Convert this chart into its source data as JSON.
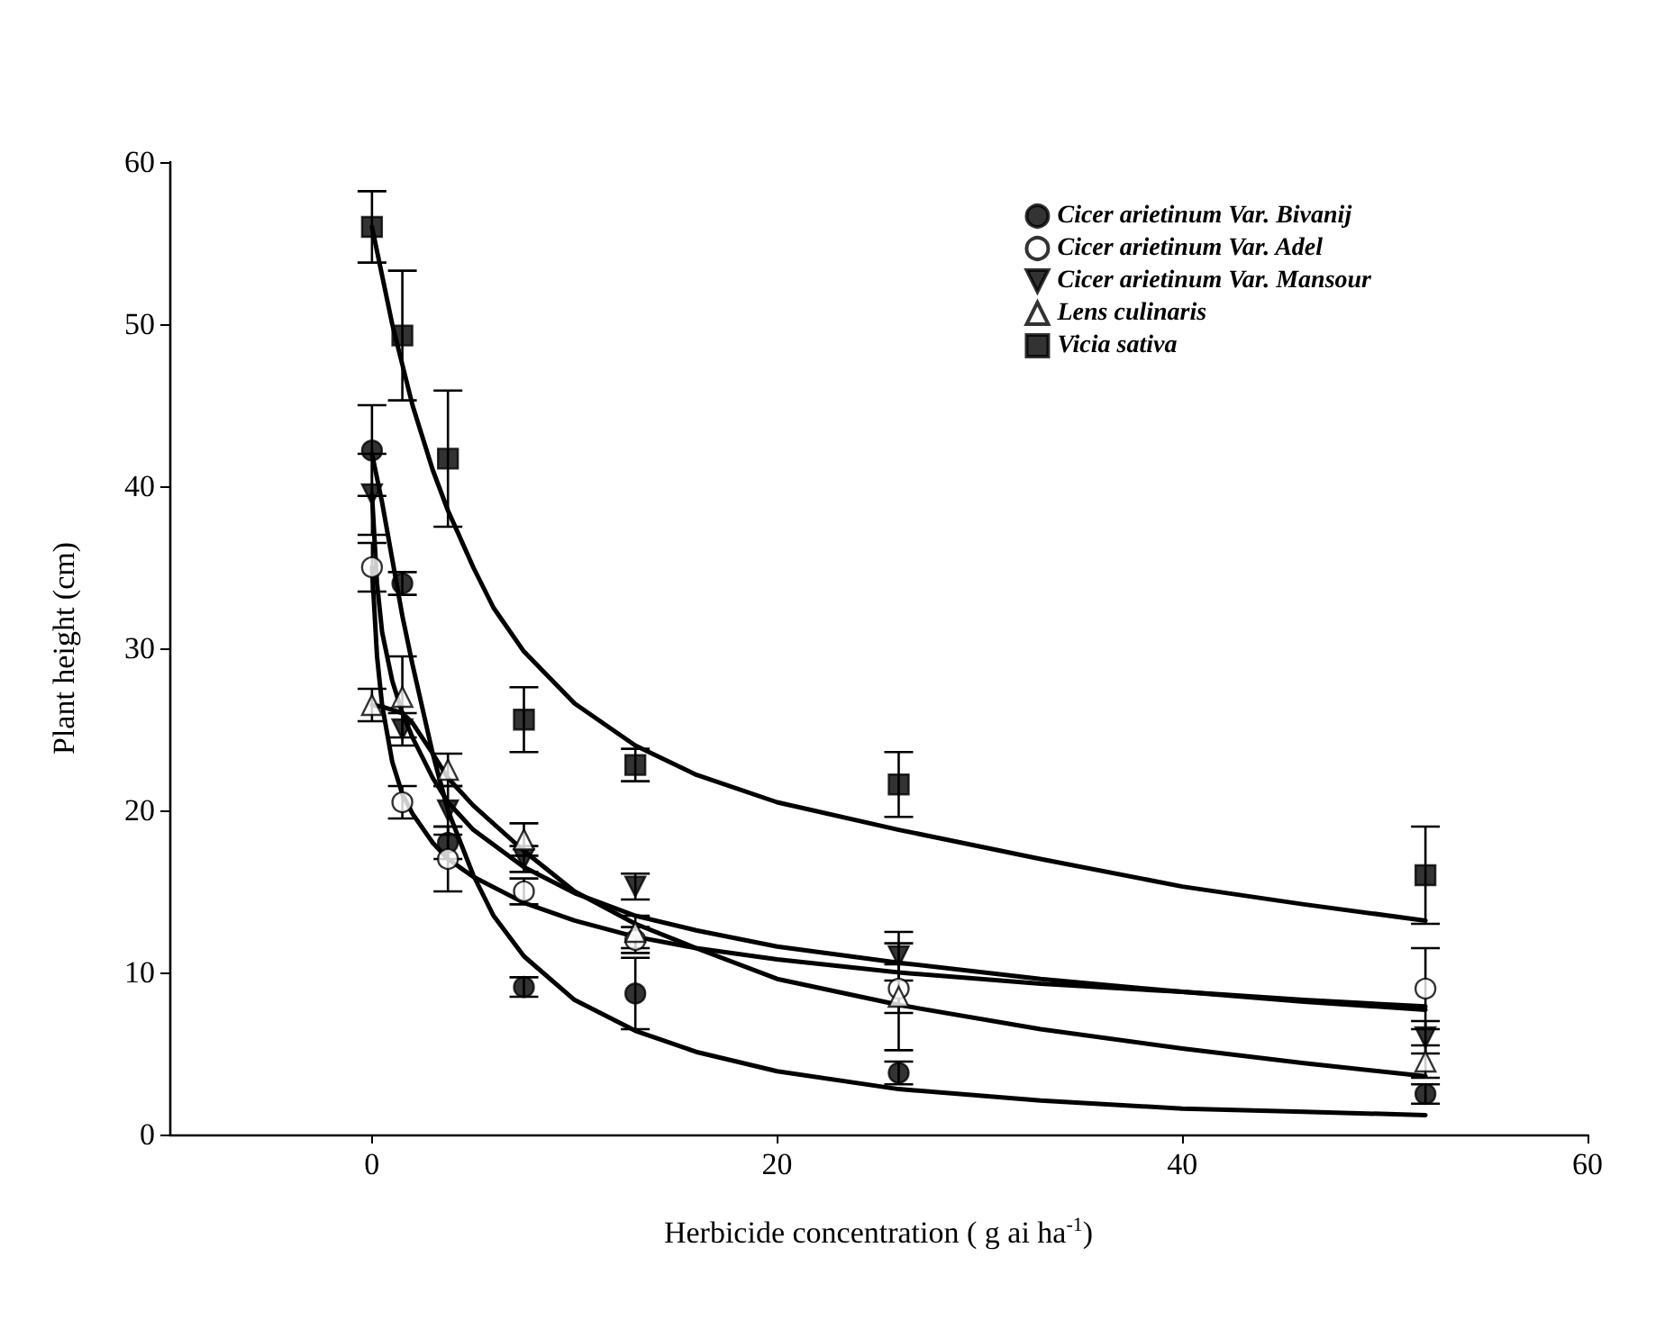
{
  "chart_data": {
    "type": "scatter",
    "xlabel": "Herbicide concentration ( g ai ha$^{-1}$)",
    "ylabel": "Plant height (cm)",
    "x": [
      0,
      1.5,
      3.75,
      7.5,
      13,
      26,
      52
    ],
    "series": [
      {
        "name": "Cicer arietinum Var. Bivanij",
        "color": "#000000",
        "marker": "circle",
        "values": [
          42.2,
          34,
          18,
          9.1,
          8.7,
          3.8,
          2.5
        ],
        "errors": [
          2.8,
          0.7,
          1,
          0.6,
          2.2,
          0.7,
          0.6
        ]
      },
      {
        "name": "Cicer arietinum Var. Adel",
        "color": "#ffffff",
        "marker": "circle",
        "values": [
          35,
          20.5,
          17,
          15,
          12,
          9,
          9
        ],
        "errors": [
          1.5,
          1,
          2,
          0.8,
          0.8,
          1.5,
          2.5
        ]
      },
      {
        "name": "Cicer arietinum Var. Mansour",
        "color": "#000000",
        "marker": "triangle-down",
        "values": [
          39.5,
          25,
          20,
          17,
          15.3,
          11,
          6
        ],
        "errors": [
          2.5,
          1,
          1.5,
          0.8,
          0.8,
          1.5,
          1
        ]
      },
      {
        "name": "Lens culinaris",
        "color": "#ffffff",
        "marker": "triangle",
        "values": [
          26.5,
          27,
          22.5,
          18.2,
          12.5,
          8.5,
          4.5
        ],
        "errors": [
          1,
          2.5,
          1,
          1,
          1,
          3.3,
          1
        ]
      },
      {
        "name": "Vicia sativa",
        "color": "#000000",
        "marker": "square",
        "values": [
          56,
          49.3,
          41.7,
          25.6,
          22.8,
          21.6,
          16
        ],
        "errors": [
          2.2,
          4,
          4.2,
          2,
          1,
          2,
          3
        ]
      },
      {
        "type": "line",
        "color": "#000000",
        "marker": "none",
        "x": [
          0,
          0.5,
          1,
          1.5,
          2,
          3,
          3.75,
          5,
          6,
          7.5,
          10,
          13,
          16,
          20,
          26,
          33,
          40,
          46,
          52
        ],
        "values": [
          42,
          39,
          35.5,
          32,
          29,
          23.5,
          20,
          16,
          13.5,
          11,
          8.3,
          6.4,
          5.1,
          3.9,
          2.8,
          2.1,
          1.6,
          1.4,
          1.2
        ]
      },
      {
        "type": "line",
        "color": "#000000",
        "marker": "none",
        "x": [
          0,
          0.25,
          0.5,
          1,
          1.5,
          2,
          3,
          3.75,
          5,
          7.5,
          10,
          13,
          16,
          20,
          26,
          33,
          40,
          46,
          52
        ],
        "values": [
          35,
          29.5,
          26.5,
          23,
          21,
          19.8,
          18,
          17,
          15.9,
          14.3,
          13.2,
          12.2,
          11.5,
          10.8,
          10,
          9.3,
          8.8,
          8.3,
          7.9
        ]
      },
      {
        "type": "line",
        "color": "#000000",
        "marker": "none",
        "x": [
          0,
          0.25,
          0.5,
          1,
          1.5,
          2,
          3,
          3.75,
          5,
          7.5,
          10,
          13,
          16,
          20,
          26,
          33,
          40,
          46,
          52
        ],
        "values": [
          39.5,
          34,
          31,
          28,
          26,
          24.5,
          22,
          20.5,
          18.8,
          16.5,
          14.9,
          13.5,
          12.6,
          11.6,
          10.6,
          9.6,
          8.8,
          8.2,
          7.7
        ]
      },
      {
        "type": "line",
        "color": "#000000",
        "marker": "none",
        "x": [
          0,
          0.5,
          1,
          1.5,
          2,
          3,
          3.75,
          5,
          7.5,
          10,
          13,
          16,
          20,
          26,
          33,
          40,
          46,
          52
        ],
        "values": [
          26.5,
          26.4,
          26.2,
          26,
          25.4,
          23.5,
          22,
          20.3,
          17.5,
          15,
          13,
          11.5,
          9.6,
          8,
          6.5,
          5.3,
          4.4,
          3.6
        ]
      },
      {
        "type": "line",
        "color": "#000000",
        "marker": "none",
        "x": [
          0,
          0.5,
          1,
          1.5,
          2,
          3,
          3.75,
          5,
          6,
          7.5,
          10,
          13,
          16,
          20,
          26,
          33,
          40,
          46,
          52
        ],
        "values": [
          56,
          53,
          50,
          47.5,
          45,
          41,
          38.5,
          35,
          32.5,
          29.8,
          26.6,
          24,
          22.2,
          20.5,
          18.8,
          17,
          15.3,
          14.2,
          13.2
        ]
      }
    ],
    "xlim": [
      -10,
      60
    ],
    "xticks": [
      0,
      20,
      40,
      60
    ],
    "ylim": [
      0,
      60
    ],
    "yticks": [
      0,
      10,
      20,
      30,
      40,
      50,
      60
    ],
    "grid": false,
    "legend": "top right"
  }
}
